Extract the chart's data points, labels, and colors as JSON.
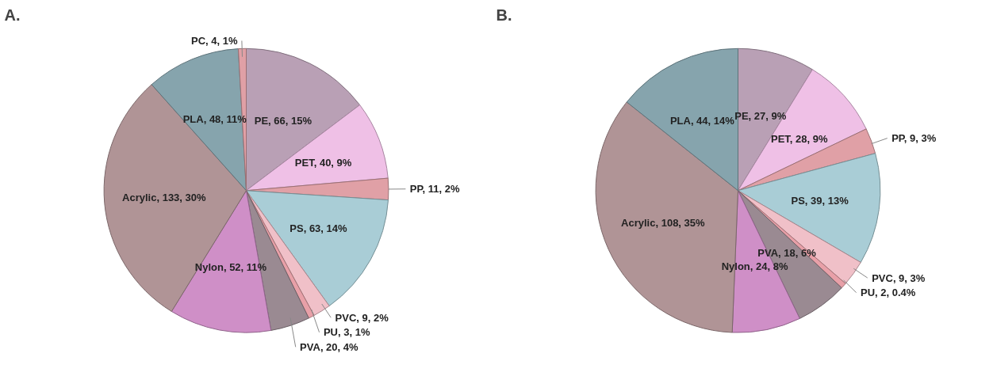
{
  "chart_data": [
    {
      "type": "pie",
      "title": "A.",
      "categories": [
        "PE, 66, 15%",
        "PET, 40, 9%",
        "PP, 11, 2%",
        "PS, 63, 14%",
        "PVC, 9, 2%",
        "PU, 3, 1%",
        "PVA, 20, 4%",
        "Nylon, 52, 11%",
        "Acrylic, 133, 30%",
        "PLA, 48, 11%",
        "PC, 4, 1%"
      ],
      "values": [
        66,
        40,
        11,
        63,
        9,
        3,
        20,
        52,
        133,
        48,
        4
      ],
      "colors": [
        "#b9a0b5",
        "#efc0e6",
        "#e0a0a6",
        "#a9cdd6",
        "#f0c0c8",
        "#e8a0a8",
        "#9a8a92",
        "#cf8fc7",
        "#b09496",
        "#86a4ad",
        "#e0a0a6"
      ],
      "legend": false
    },
    {
      "type": "pie",
      "title": "B.",
      "categories": [
        "PE, 27, 9%",
        "PET, 28, 9%",
        "PP, 9, 3%",
        "PS, 39, 13%",
        "PVC, 9, 3%",
        "PU, 2, 0.4%",
        "PVA, 18, 6%",
        "Nylon, 24, 8%",
        "Acrylic, 108, 35%",
        "PLA, 44, 14%"
      ],
      "values": [
        27,
        28,
        9,
        39,
        9,
        2,
        18,
        24,
        108,
        44
      ],
      "colors": [
        "#b9a0b5",
        "#efc0e6",
        "#e0a0a6",
        "#a9cdd6",
        "#f0c0c8",
        "#e8a0a8",
        "#9a8a92",
        "#cf8fc7",
        "#b09496",
        "#86a4ad"
      ],
      "legend": false
    }
  ]
}
